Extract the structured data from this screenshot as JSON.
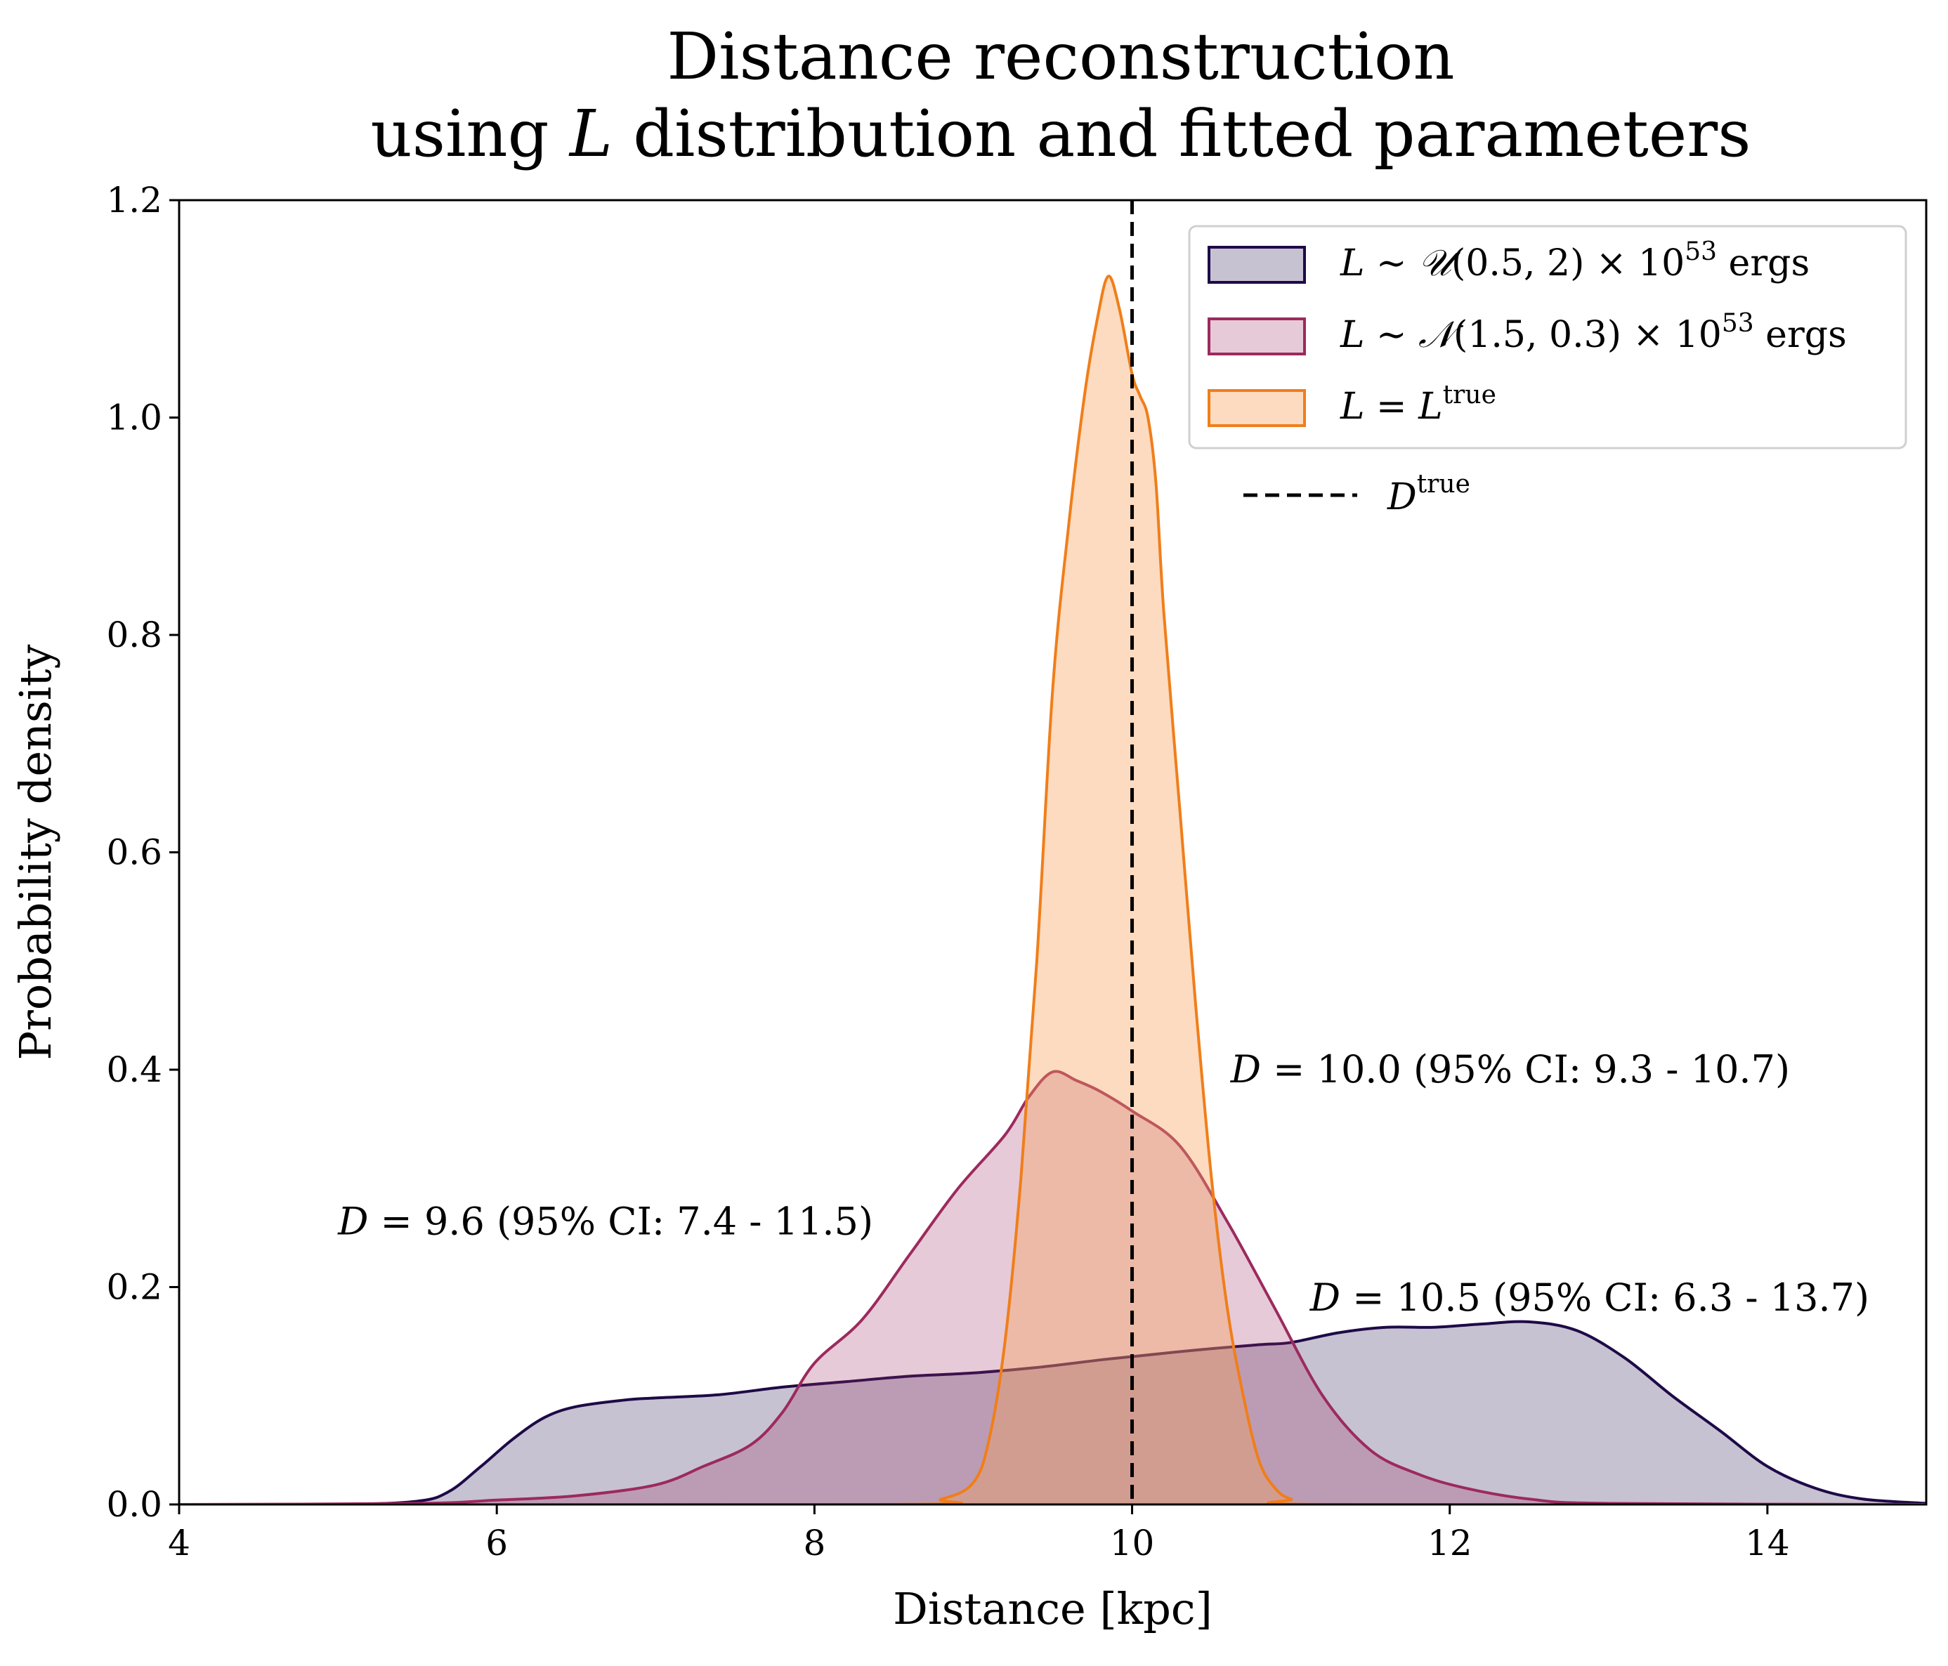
{
  "chart_data": {
    "type": "area",
    "title_line1": "Distance reconstruction",
    "title_line2_prefix": "using ",
    "title_line2_var": "L",
    "title_line2_suffix": " distribution and fitted parameters",
    "xlabel": "Distance [kpc]",
    "ylabel": "Probability density",
    "xlim": [
      4,
      15
    ],
    "ylim": [
      0,
      1.2
    ],
    "xticks": [
      4,
      6,
      8,
      10,
      12,
      14
    ],
    "xtick_labels": [
      "4",
      "6",
      "8",
      "10",
      "12",
      "14"
    ],
    "yticks": [
      0.0,
      0.2,
      0.4,
      0.6,
      0.8,
      1.0,
      1.2
    ],
    "ytick_labels": [
      "0.0",
      "0.2",
      "0.4",
      "0.6",
      "0.8",
      "1.0",
      "1.2"
    ],
    "grid": false,
    "legend_placement": "top-right",
    "series": [
      {
        "name": "L ∼ 𝒰(0.5, 2) × 10⁵³ ergs",
        "legend_parts": {
          "var": "L",
          "rel": " ∼ ",
          "dist": "𝒰",
          "args": "(0.5, 2) × 10",
          "exp": "53",
          "unit": " ergs"
        },
        "line_color": "#1e0a47",
        "fill_color": "#1e0a47",
        "fill_opacity": 0.25,
        "x": [
          4.0,
          5.0,
          5.5,
          5.7,
          5.9,
          6.1,
          6.3,
          6.5,
          6.8,
          7.0,
          7.4,
          7.8,
          8.2,
          8.6,
          9.0,
          9.4,
          9.8,
          10.0,
          10.4,
          10.8,
          11.0,
          11.3,
          11.6,
          11.9,
          12.2,
          12.5,
          12.8,
          13.1,
          13.4,
          13.7,
          14.0,
          14.3,
          14.6,
          15.0
        ],
        "y": [
          0.0,
          0.0,
          0.003,
          0.012,
          0.035,
          0.06,
          0.08,
          0.09,
          0.096,
          0.098,
          0.101,
          0.108,
          0.113,
          0.118,
          0.121,
          0.126,
          0.133,
          0.136,
          0.142,
          0.147,
          0.149,
          0.158,
          0.163,
          0.163,
          0.166,
          0.168,
          0.16,
          0.135,
          0.1,
          0.068,
          0.035,
          0.015,
          0.005,
          0.001
        ]
      },
      {
        "name": "L ∼ 𝒩(1.5, 0.3) × 10⁵³ ergs",
        "legend_parts": {
          "var": "L",
          "rel": " ∼ ",
          "dist": "𝒩",
          "args": "(1.5, 0.3) × 10",
          "exp": "53",
          "unit": " ergs"
        },
        "line_color": "#9c2a5e",
        "fill_color": "#9c2a5e",
        "fill_opacity": 0.25,
        "x": [
          4.0,
          5.5,
          6.0,
          6.5,
          7.0,
          7.3,
          7.6,
          7.8,
          8.0,
          8.3,
          8.6,
          8.9,
          9.2,
          9.35,
          9.5,
          9.65,
          9.8,
          10.0,
          10.3,
          10.6,
          10.9,
          11.2,
          11.5,
          11.8,
          12.1,
          12.5,
          13.0,
          15.0
        ],
        "y": [
          0.0,
          0.001,
          0.004,
          0.008,
          0.018,
          0.035,
          0.055,
          0.085,
          0.13,
          0.17,
          0.23,
          0.29,
          0.34,
          0.375,
          0.398,
          0.39,
          0.38,
          0.362,
          0.33,
          0.26,
          0.18,
          0.1,
          0.05,
          0.028,
          0.015,
          0.005,
          0.001,
          0.0
        ]
      },
      {
        "name": "L = Lᵗʳᵘᵉ",
        "legend_parts": {
          "var": "L",
          "rel": " = ",
          "dist": "L",
          "args": "",
          "exp": "true",
          "unit": ""
        },
        "line_color": "#f07e1a",
        "fill_color": "#f7a05a",
        "fill_opacity": 0.38,
        "x": [
          4.0,
          8.5,
          8.8,
          9.0,
          9.1,
          9.2,
          9.3,
          9.4,
          9.5,
          9.6,
          9.7,
          9.78,
          9.85,
          9.92,
          10.0,
          10.05,
          10.1,
          10.15,
          10.2,
          10.3,
          10.4,
          10.5,
          10.6,
          10.7,
          10.8,
          10.9,
          11.0,
          11.2,
          15.0
        ],
        "y": [
          0.0,
          0.0,
          0.005,
          0.02,
          0.06,
          0.15,
          0.3,
          0.5,
          0.75,
          0.9,
          1.02,
          1.09,
          1.13,
          1.1,
          1.04,
          1.02,
          1.0,
          0.94,
          0.82,
          0.64,
          0.46,
          0.3,
          0.18,
          0.1,
          0.04,
          0.015,
          0.005,
          0.0,
          0.0
        ]
      }
    ],
    "reference_line": {
      "x": 10,
      "label_var": "D",
      "label_sup": "true",
      "color": "#000000",
      "style": "dashed"
    },
    "annotations": [
      {
        "var": "D",
        "text": " = 10.0 (95% CI: 9.3 - 10.7)",
        "x": 10.62,
        "y": 0.4
      },
      {
        "var": "D",
        "text": " = 9.6 (95% CI: 7.4 - 11.5)",
        "x": 5.0,
        "y": 0.26
      },
      {
        "var": "D",
        "text": " = 10.5 (95% CI: 6.3 - 13.7)",
        "x": 11.12,
        "y": 0.19
      }
    ]
  }
}
